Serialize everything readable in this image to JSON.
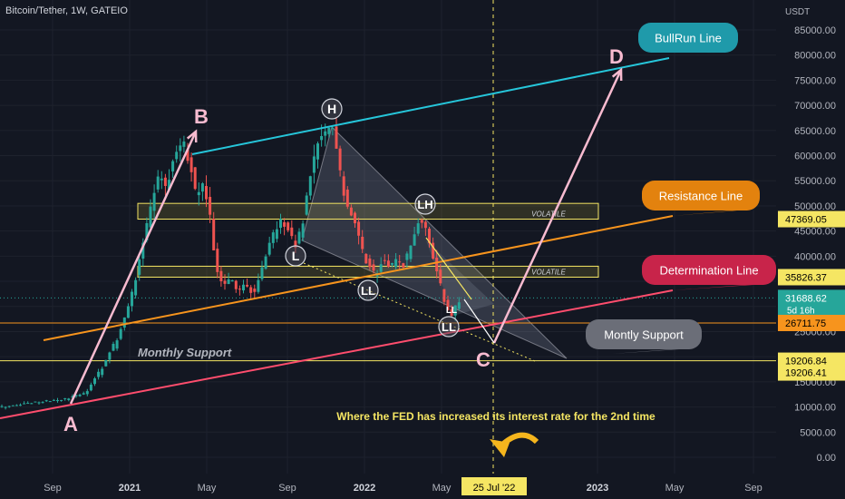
{
  "header": {
    "symbol": "Bitcoin/Tether, 1W, GATEIO",
    "currency": "USDT"
  },
  "colors": {
    "bg": "#131722",
    "up": "#26a69a",
    "down": "#ef5350",
    "grid": "#1e222d",
    "axis_text": "#b2b5be",
    "bullrun": "#26c6da",
    "resistance": "#f7941d",
    "determination": "#ff4d6d",
    "support": "#f5e663",
    "pink": "#f8bbd0"
  },
  "chart_data": {
    "type": "candlestick",
    "yaxis": {
      "ticks": [
        0,
        5000,
        10000,
        15000,
        20000,
        25000,
        30000,
        35000,
        40000,
        45000,
        50000,
        55000,
        60000,
        65000,
        70000,
        75000,
        80000,
        85000
      ],
      "range": [
        -1500,
        87000
      ]
    },
    "xaxis": {
      "ticks": [
        "Sep",
        "2021",
        "May",
        "Sep",
        "2022",
        "May",
        "2023",
        "May",
        "Sep"
      ]
    },
    "price_labels": [
      {
        "value": 47369.05,
        "text": "47369.05",
        "kind": "resistance"
      },
      {
        "value": 35826.37,
        "text": "35826.37",
        "kind": "support"
      },
      {
        "value": 31688.62,
        "text": "31688.62",
        "sub": "5d 16h",
        "kind": "current"
      },
      {
        "value": 26711.75,
        "text": "26711.75",
        "kind": "support"
      },
      {
        "value": 19206.84,
        "text": "19206.84",
        "kind": "support"
      },
      {
        "value": 19206.41,
        "text": "19206.41",
        "kind": "support"
      }
    ],
    "zones": [
      {
        "low": 47369,
        "high": 50500,
        "label": "VOLATILE"
      },
      {
        "low": 35826,
        "high": 38000,
        "label": "VOLATILE"
      }
    ],
    "horizontal_lines": [
      26711.75,
      19206.84
    ],
    "trend_lines": [
      {
        "name": "BullRun Line",
        "start": 60500,
        "end": 81000
      },
      {
        "name": "Resistance Line",
        "start": 24000,
        "end": 48000
      },
      {
        "name": "Determination Line",
        "start": 8000,
        "end": 32000
      }
    ],
    "callouts": [
      "BullRun Line",
      "Resistance Line",
      "Determination Line",
      "Montly Support"
    ],
    "points": [
      "A",
      "B",
      "C",
      "D"
    ],
    "pattern_labels": [
      "H",
      "LH",
      "L",
      "LL",
      "LL",
      "LL"
    ],
    "annotations": {
      "monthly_support": "Monthly Support",
      "fed_note": "Where the FED has increased its interest rate for the 2nd time",
      "date_marker": "25 Jul '22"
    }
  }
}
